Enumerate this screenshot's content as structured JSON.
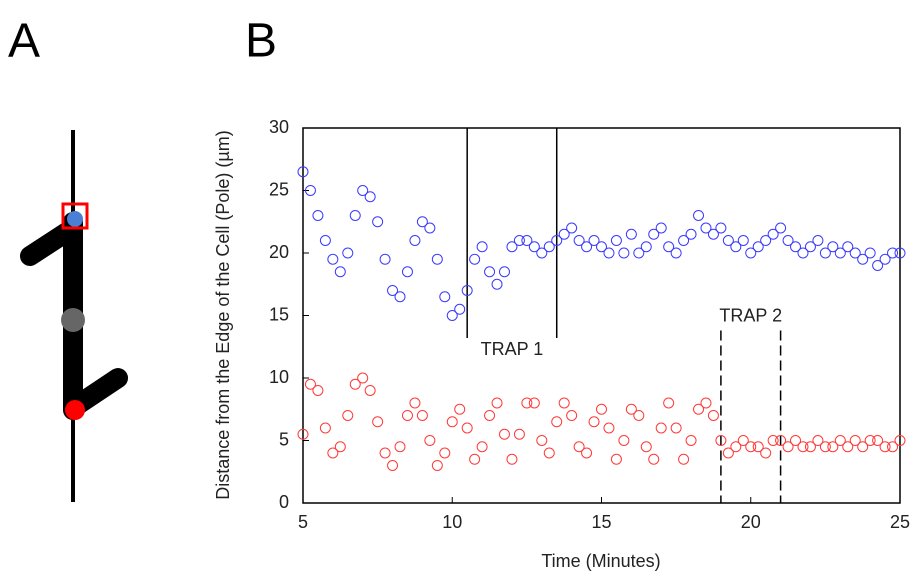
{
  "panels": {
    "a": "A",
    "b": "B"
  },
  "chart_data": {
    "type": "scatter",
    "xlabel": "Time  (Minutes)",
    "ylabel": "Distance from the Edge of the Cell (Pole) (µm)",
    "xlim": [
      5,
      25
    ],
    "ylim": [
      0,
      30
    ],
    "xticks": [
      5,
      10,
      15,
      20,
      25
    ],
    "yticks": [
      0,
      5,
      10,
      15,
      20,
      25,
      30
    ],
    "annotations": [
      {
        "text": "TRAP 1",
        "x": [
          10.5,
          13.5
        ],
        "style": "solid",
        "side": "upper"
      },
      {
        "text": "TRAP 2",
        "x": [
          19,
          21
        ],
        "style": "dashed",
        "side": "lower"
      }
    ],
    "x": [
      5,
      5.25,
      5.5,
      5.75,
      6,
      6.25,
      6.5,
      6.75,
      7,
      7.25,
      7.5,
      7.75,
      8,
      8.25,
      8.5,
      8.75,
      9,
      9.25,
      9.5,
      9.75,
      10,
      10.25,
      10.5,
      10.75,
      11,
      11.25,
      11.5,
      11.75,
      12,
      12.25,
      12.5,
      12.75,
      13,
      13.25,
      13.5,
      13.75,
      14,
      14.25,
      14.5,
      14.75,
      15,
      15.25,
      15.5,
      15.75,
      16,
      16.25,
      16.5,
      16.75,
      17,
      17.25,
      17.5,
      17.75,
      18,
      18.25,
      18.5,
      18.75,
      19,
      19.25,
      19.5,
      19.75,
      20,
      20.25,
      20.5,
      20.75,
      21,
      21.25,
      21.5,
      21.75,
      22,
      22.25,
      22.5,
      22.75,
      23,
      23.25,
      23.5,
      23.75,
      24,
      24.25,
      24.5,
      24.75,
      25
    ],
    "series": [
      {
        "color": "#3a3aff",
        "values": [
          26.5,
          25,
          23,
          21,
          19.5,
          18.5,
          20,
          23,
          25,
          24.5,
          22.5,
          19.5,
          17,
          16.5,
          18.5,
          21,
          22.5,
          22,
          19.5,
          16.5,
          15,
          15.5,
          17,
          19.5,
          20.5,
          18.5,
          17.5,
          18.5,
          20.5,
          21,
          21,
          20.5,
          20,
          20.5,
          21,
          21.5,
          22,
          21,
          20.5,
          21,
          20.5,
          20,
          21,
          20,
          21.5,
          20,
          20.5,
          21.5,
          22,
          20.5,
          20,
          21,
          21.5,
          23,
          22,
          21.5,
          22,
          21,
          20.5,
          21,
          20,
          20.5,
          21,
          21.5,
          22,
          21,
          20.5,
          20,
          20.5,
          21,
          20,
          20.5,
          20,
          20.5,
          20,
          19.5,
          20,
          19,
          19.5,
          20,
          20
        ]
      },
      {
        "color": "#ff3a3a",
        "values": [
          5.5,
          9.5,
          9,
          6,
          4,
          4.5,
          7,
          9.5,
          10,
          9,
          6.5,
          4,
          3,
          4.5,
          7,
          8,
          7,
          5,
          3,
          4,
          6.5,
          7.5,
          6,
          3.5,
          4.5,
          7,
          8,
          5.5,
          3.5,
          5.5,
          8,
          8,
          5,
          4,
          6.5,
          8,
          7,
          4.5,
          4,
          6.5,
          7.5,
          6,
          3.5,
          5,
          7.5,
          7,
          4.5,
          3.5,
          6,
          8,
          6,
          3.5,
          5,
          7.5,
          8,
          7,
          5,
          4,
          4.5,
          5,
          4.5,
          4.5,
          4,
          5,
          5,
          4.5,
          5,
          4.5,
          4.5,
          5,
          4.5,
          4.5,
          5,
          4.5,
          5,
          4.5,
          5,
          5,
          4.5,
          4.5,
          5
        ]
      }
    ]
  }
}
